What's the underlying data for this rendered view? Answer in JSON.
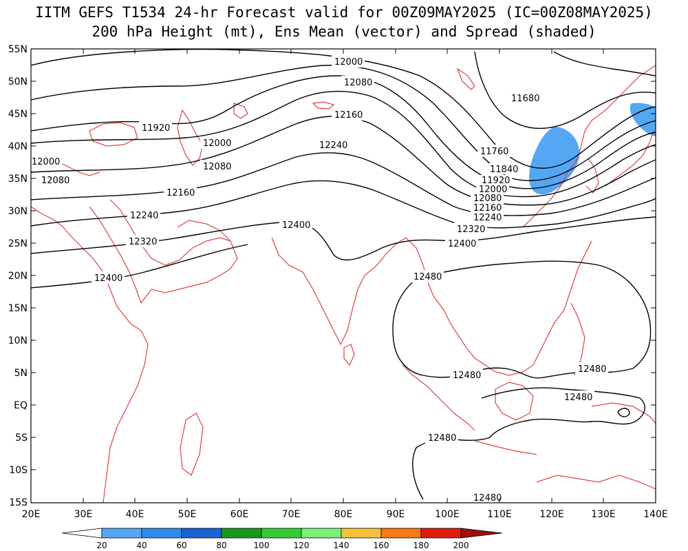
{
  "title_line1": "IITM GEFS T1534 24-hr Forecast valid for 00Z09MAY2025 (IC=00Z08MAY2025)",
  "title_line2": "200 hPa Height (mt), Ens Mean (vector) and Spread (shaded)",
  "lat_labels": [
    "55N",
    "50N",
    "45N",
    "40N",
    "35N",
    "30N",
    "25N",
    "20N",
    "15N",
    "10N",
    "5N",
    "EQ",
    "5S",
    "10S",
    "15S"
  ],
  "lon_labels": [
    "20E",
    "30E",
    "40E",
    "50E",
    "60E",
    "70E",
    "80E",
    "90E",
    "100E",
    "110E",
    "120E",
    "130E",
    "140E"
  ],
  "colorbar": {
    "ticks": [
      "20",
      "40",
      "60",
      "80",
      "100",
      "120",
      "140",
      "160",
      "180",
      "200"
    ],
    "colors": [
      "#ffffff",
      "#55a7f4",
      "#2f8ced",
      "#1a64d6",
      "#1a9a1a",
      "#33cc33",
      "#7cf07c",
      "#f6c23c",
      "#f67a14",
      "#e01d0c",
      "#a20b0b"
    ]
  },
  "contour_labels": {
    "c12000a": "12000",
    "c12080a": "12080",
    "c12160a": "12160",
    "c12240a": "12240",
    "c11680": "11680",
    "c11920": "11920",
    "c12000b": "12000",
    "c12080b": "12080",
    "c12160b": "12160",
    "c12240b": "12240",
    "c12320a": "12320",
    "c12400a": "12400",
    "c12000c": "12000",
    "c12080c": "12080",
    "c11760": "11760",
    "c11840": "11840",
    "c11920b": "11920",
    "c12000d": "12000",
    "c12080d": "12080",
    "c12160d": "12160",
    "c12240d": "12240",
    "c12320b": "12320",
    "c12400b": "12400",
    "c12400c": "12400",
    "c12480a": "12480",
    "c12480b": "12480",
    "c12480c": "12480",
    "c12480d": "12480",
    "c12480e": "12480",
    "c12480f": "12480"
  }
}
